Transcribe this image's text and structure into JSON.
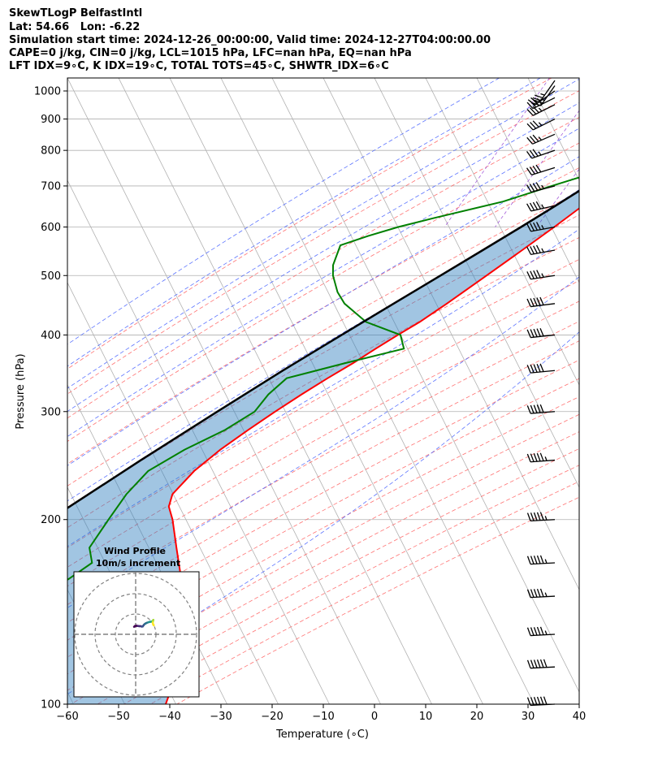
{
  "header": {
    "line1": "SkewTLogP BelfastIntl",
    "line2": "Lat: 54.66   Lon: -6.22",
    "line3": "Simulation start time: 2024-12-26_00:00:00, Valid time: 2024-12-27T04:00:00.00",
    "line4": "CAPE=0 j/kg, CIN=0 j/kg, LCL=1015 hPa, LFC=nan hPa, EQ=nan hPa",
    "line5": "LFT IDX=9∘C, K IDX=19∘C, TOTAL TOTS=45∘C, SHWTR_IDX=6∘C"
  },
  "chart_data": {
    "type": "skewt",
    "xlabel": "Temperature (∘C)",
    "ylabel": "Pressure (hPa)",
    "xlim": [
      -60,
      40
    ],
    "ylim": [
      1050,
      100
    ],
    "x_ticks": [
      -60,
      -50,
      -40,
      -30,
      -20,
      -10,
      0,
      10,
      20,
      30,
      40
    ],
    "y_ticks": [
      1000,
      900,
      800,
      700,
      600,
      500,
      400,
      300,
      200,
      100
    ],
    "series": [
      {
        "name": "Temperature",
        "color": "#ff0000",
        "pressure": [
          1010,
          990,
          950,
          900,
          850,
          800,
          750,
          700,
          650,
          600,
          550,
          500,
          450,
          420,
          400,
          380,
          360,
          340,
          320,
          300,
          280,
          260,
          240,
          220,
          210,
          200,
          180,
          160,
          150,
          140,
          130,
          120,
          110,
          100
        ],
        "temp": [
          9.9,
          9.9,
          8.5,
          6.5,
          4.2,
          1.5,
          -1.5,
          -4.5,
          -8,
          -11.5,
          -15.5,
          -20,
          -25,
          -28.5,
          -31.5,
          -34.5,
          -37.5,
          -41,
          -44.5,
          -48,
          -51.5,
          -55,
          -58,
          -60,
          -59.5,
          -57.5,
          -54,
          -50,
          -47,
          -44.5,
          -43,
          -42.3,
          -41.5,
          -40.8
        ]
      },
      {
        "name": "Dewpoint",
        "color": "#008000",
        "pressure": [
          1010,
          990,
          950,
          900,
          850,
          800,
          760,
          740,
          720,
          700,
          660,
          620,
          600,
          580,
          560,
          520,
          500,
          470,
          450,
          420,
          400,
          380,
          360,
          340,
          320,
          300,
          280,
          260,
          240,
          220,
          200,
          180,
          170,
          160,
          150,
          140,
          130,
          120,
          110,
          100
        ],
        "temp": [
          9.9,
          9.3,
          8.0,
          5.5,
          2.5,
          -1.0,
          -5,
          -8,
          -12,
          -16,
          -24,
          -36,
          -42,
          -47,
          -51.5,
          -51,
          -50,
          -47.5,
          -45,
          -39,
          -31,
          -29,
          -39,
          -49,
          -51,
          -52,
          -56,
          -62,
          -67,
          -69,
          -70,
          -71,
          -69,
          -72,
          -76,
          -77,
          -76,
          -75,
          -74,
          -73
        ]
      },
      {
        "name": "Parcel",
        "color": "#000000",
        "pressure": [
          1010,
          1000,
          950,
          900,
          850,
          800,
          750,
          700,
          650,
          600,
          550,
          500,
          450,
          400,
          350,
          300,
          250,
          200,
          150,
          100
        ],
        "temp": [
          9.3,
          8.9,
          6.6,
          4.0,
          1.2,
          -1.9,
          -5.3,
          -9.1,
          -13.3,
          -18.0,
          -23.2,
          -29.0,
          -35.4,
          -42.5,
          -50.5,
          -59.3,
          -69.5,
          -81.5,
          -96.0,
          -115.0
        ]
      }
    ],
    "wind_barbs": {
      "pressure": [
        1040,
        1020,
        1000,
        975,
        950,
        900,
        850,
        800,
        750,
        700,
        650,
        600,
        550,
        500,
        450,
        400,
        350,
        300,
        250,
        200,
        170,
        150,
        130,
        115,
        100
      ],
      "u": [
        -14,
        -14,
        -20,
        -30,
        -30,
        -30,
        -32,
        -35,
        -38,
        -42,
        -44,
        -44,
        -44,
        -46,
        -48,
        -48,
        -52,
        -52,
        -55,
        -55,
        -57,
        -57,
        -57,
        -60,
        -60
      ],
      "v": [
        -20,
        -20,
        -14,
        -15,
        -15,
        -15,
        -14,
        -12,
        -12,
        -11,
        -10,
        -8,
        -8,
        -7,
        -6,
        -5,
        -5,
        -4,
        -4,
        -3,
        -3,
        -3,
        -3,
        -3,
        -3
      ]
    },
    "hodograph": {
      "title": "Wind Profile",
      "subtitle": "10m/s increment",
      "u": [
        -0.8,
        -0.3,
        0.5,
        1.2,
        1.8,
        2.5,
        3.0,
        3.5,
        4.0,
        4.5,
        5.0,
        5.6,
        6.2,
        6.8,
        7.3,
        7.6,
        7.9,
        8.2,
        8.4,
        8.5,
        8.6,
        8.7,
        8.7,
        8.5,
        8.4,
        8.6,
        8.8,
        8.9
      ],
      "v": [
        3.7,
        4.1,
        4.2,
        4.1,
        4.0,
        4.0,
        3.8,
        3.9,
        4.6,
        5.1,
        5.4,
        5.7,
        5.9,
        6.1,
        6.2,
        6.2,
        6.3,
        6.4,
        6.6,
        6.8,
        6.9,
        7.1,
        7.0,
        6.5,
        5.8,
        4.9,
        4.6,
        4.4
      ]
    }
  }
}
